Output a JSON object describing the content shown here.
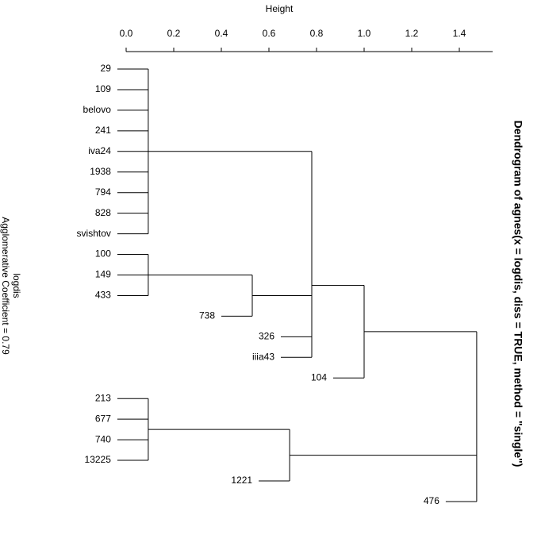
{
  "chart_data": {
    "type": "dendrogram",
    "title": "Dendrogram of  agnes(x = logdis, diss = TRUE, method = \"single\")",
    "xlabel": "Height",
    "annotations": [
      "logdis",
      "Agglomerative Coefficient =  0.79"
    ],
    "xlim": [
      0,
      1.54
    ],
    "xticks": [
      {
        "value": 0,
        "label": "0.0"
      },
      0.2,
      0.4,
      0.6,
      0.8,
      {
        "value": 1,
        "label": "1.0"
      },
      1.2,
      1.4
    ],
    "tree": {
      "height": 1.473,
      "children": [
        {
          "height": 1.0,
          "children": [
            {
              "height": 0.78,
              "children": [
                {
                  "height": 0.093,
                  "children": [
                    {
                      "label": "29"
                    },
                    {
                      "label": "109"
                    },
                    {
                      "label": "belovo"
                    },
                    {
                      "label": "241"
                    },
                    {
                      "label": "iva24"
                    },
                    {
                      "label": "1938"
                    },
                    {
                      "label": "794"
                    },
                    {
                      "label": "828"
                    },
                    {
                      "label": "svishtov"
                    }
                  ]
                },
                {
                  "height": 0.53,
                  "children": [
                    {
                      "height": 0.093,
                      "children": [
                        {
                          "label": "100"
                        },
                        {
                          "label": "149"
                        },
                        {
                          "label": "433"
                        }
                      ]
                    },
                    {
                      "label": "738"
                    }
                  ]
                },
                {
                  "label": "326"
                },
                {
                  "label": "iiia43"
                }
              ]
            },
            {
              "label": "104"
            }
          ]
        },
        {
          "height": 0.687,
          "children": [
            {
              "height": 0.093,
              "children": [
                {
                  "label": "213"
                },
                {
                  "label": "677"
                },
                {
                  "label": "740"
                },
                {
                  "label": "13225"
                }
              ]
            },
            {
              "label": "1221"
            }
          ]
        },
        {
          "label": "476"
        }
      ]
    }
  }
}
